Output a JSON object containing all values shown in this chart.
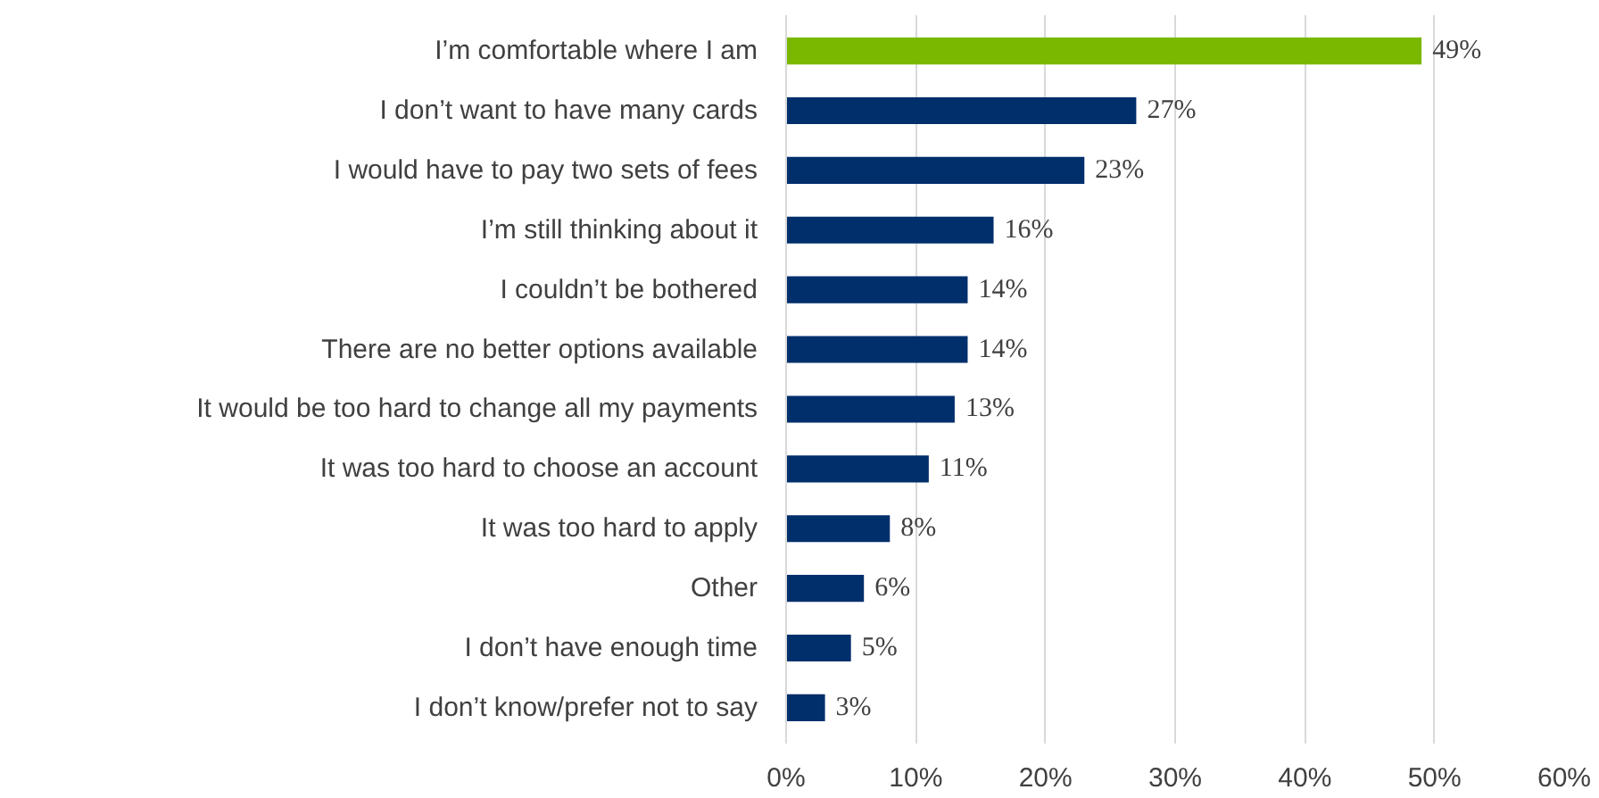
{
  "chart_data": {
    "type": "bar",
    "orientation": "horizontal",
    "categories": [
      "I’m comfortable where I am",
      "I don’t want to have many cards",
      "I would have to pay two sets of fees",
      "I’m still thinking about it",
      "I couldn’t be bothered",
      "There are no better options available",
      "It would be too hard to change all my payments",
      "It was too hard to choose an account",
      "It was too hard to apply",
      "Other",
      "I don’t have enough time",
      "I don’t know/prefer not to say"
    ],
    "values": [
      49,
      27,
      23,
      16,
      14,
      14,
      13,
      11,
      8,
      6,
      5,
      3
    ],
    "colors": [
      "#7ab800",
      "#002f6c",
      "#002f6c",
      "#002f6c",
      "#002f6c",
      "#002f6c",
      "#002f6c",
      "#002f6c",
      "#002f6c",
      "#002f6c",
      "#002f6c",
      "#002f6c"
    ],
    "value_labels": [
      "49%",
      "27%",
      "23%",
      "16%",
      "14%",
      "14%",
      "13%",
      "11%",
      "8%",
      "6%",
      "5%",
      "3%"
    ],
    "xlim": [
      0,
      60
    ],
    "xticks": [
      {
        "value": 0,
        "label": "0%"
      },
      {
        "value": 10,
        "label": "10%"
      },
      {
        "value": 20,
        "label": "20%"
      },
      {
        "value": 30,
        "label": "30%"
      },
      {
        "value": 40,
        "label": "40%"
      },
      {
        "value": 50,
        "label": "50%"
      },
      {
        "value": 60,
        "label": "60%"
      }
    ],
    "grid": "x"
  }
}
